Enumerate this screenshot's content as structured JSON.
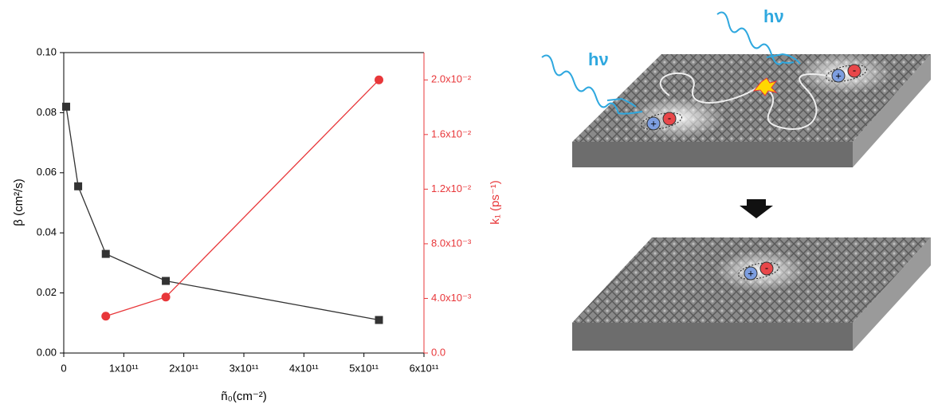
{
  "chart_data": {
    "type": "line",
    "xlabel": "ñ₀(cm⁻²)",
    "ylabel": "β (cm²/s)",
    "y2label": "k₁ (ps⁻¹)",
    "xlim": [
      0,
      600000000000
    ],
    "xticks": [
      0,
      {
        "value": 100000000000,
        "label": "1x10¹¹"
      },
      {
        "value": 200000000000,
        "label": "2x10¹¹"
      },
      {
        "value": 300000000000,
        "label": "3x10¹¹"
      },
      {
        "value": 400000000000,
        "label": "4x10¹¹"
      },
      {
        "value": 500000000000,
        "label": "5x10¹¹"
      },
      {
        "value": 600000000000,
        "label": "6x10¹¹"
      }
    ],
    "ylim": [
      0,
      0.1
    ],
    "yticks": [
      {
        "value": 0,
        "label": "0.00"
      },
      0.02,
      0.04,
      0.06,
      0.08,
      {
        "value": 0.1,
        "label": "0.10"
      }
    ],
    "y2lim": [
      0,
      0.022
    ],
    "y2ticks": [
      {
        "value": 0,
        "label": "0.0"
      },
      {
        "value": 0.004,
        "label": "4.0x10⁻³"
      },
      {
        "value": 0.008,
        "label": "8.0x10⁻³"
      },
      {
        "value": 0.012,
        "label": "1.2x10⁻²"
      },
      {
        "value": 0.016,
        "label": "1.6x10⁻²"
      },
      {
        "value": 0.02,
        "label": "2.0x10⁻²"
      }
    ],
    "series": [
      {
        "color": "#333333",
        "marker": "square",
        "axis": "y",
        "x": [
          4000000000,
          24000000000,
          70000000000,
          170000000000,
          525000000000
        ],
        "values": [
          0.082,
          0.0555,
          0.033,
          0.024,
          0.011
        ]
      },
      {
        "color": "#e8373a",
        "marker": "circle",
        "axis": "y2",
        "x": [
          70000000000,
          170000000000,
          525000000000
        ],
        "values": [
          0.0027,
          0.0041,
          0.02
        ]
      }
    ]
  },
  "diagram": {
    "photon_labels": [
      "hν",
      "hν"
    ],
    "charges": [
      "+",
      "-"
    ]
  }
}
